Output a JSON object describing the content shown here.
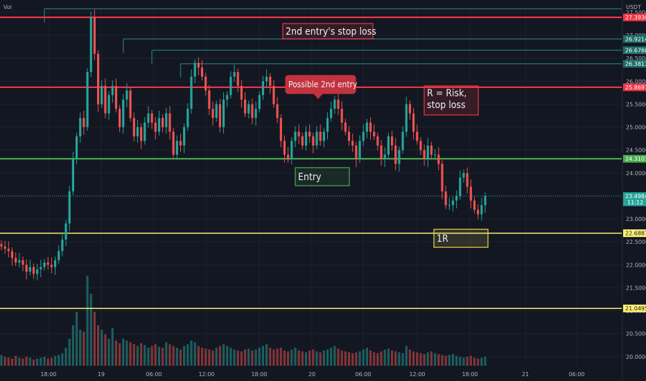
{
  "chart_data": {
    "type": "candlestick",
    "symbol_label": "Vol",
    "currency_label": "USDT",
    "colors": {
      "background": "#131722",
      "up": "#26a69a",
      "down": "#ef5350",
      "red_line": "#f23645",
      "green_line": "#4caf50",
      "yellow_line": "#fff176",
      "teal_line": "#1e6e6a",
      "current_line": "#26a69a",
      "grid": "#1e222d"
    },
    "y_axis": {
      "min": 19.8,
      "max": 27.65,
      "ticks": [
        "27.5000",
        "27.0000",
        "26.5000",
        "26.0000",
        "25.5000",
        "25.0000",
        "24.5000",
        "24.0000",
        "23.5000",
        "23.0000",
        "22.5000",
        "22.0000",
        "21.5000",
        "21.0000",
        "20.5000",
        "20.0000"
      ],
      "tick_values": [
        27.5,
        27.0,
        26.5,
        26.0,
        25.5,
        25.0,
        24.5,
        24.0,
        23.5,
        23.0,
        22.5,
        22.0,
        21.5,
        21.0,
        20.5,
        20.0
      ]
    },
    "x_axis": {
      "labels": [
        "18:00",
        "19",
        "06:00",
        "12:00",
        "18:00",
        "20",
        "06:00",
        "12:00",
        "18:00",
        "21",
        "06:00"
      ]
    },
    "price_labels": [
      {
        "value": "27.3930",
        "price": 27.393,
        "color": "#f23645"
      },
      {
        "value": "26.9214",
        "price": 26.9214,
        "color": "#1e6e6a"
      },
      {
        "value": "26.6760",
        "price": 26.676,
        "color": "#1e6e6a"
      },
      {
        "value": "26.3811",
        "price": 26.3811,
        "color": "#1e6e6a"
      },
      {
        "value": "25.8697",
        "price": 25.8697,
        "color": "#f23645"
      },
      {
        "value": "24.3107",
        "price": 24.3107,
        "color": "#4caf50"
      },
      {
        "value": "23.4984",
        "price": 23.4984,
        "color": "#26a69a",
        "sub": "11:12"
      },
      {
        "value": "22.6887",
        "price": 22.6887,
        "color": "#fff176"
      },
      {
        "value": "21.0495",
        "price": 21.0495,
        "color": "#fff176"
      }
    ],
    "horizontal_levels": [
      {
        "price": 27.393,
        "kind": "red"
      },
      {
        "price": 25.8697,
        "kind": "red"
      },
      {
        "price": 24.3107,
        "kind": "green"
      },
      {
        "price": 22.6887,
        "kind": "yellow"
      },
      {
        "price": 21.0495,
        "kind": "yellow"
      },
      {
        "price": 23.4984,
        "kind": "current"
      }
    ],
    "ray_levels": [
      {
        "price": 27.58,
        "start_price_bar": 12
      },
      {
        "price": 26.9214,
        "start_price_bar": 34
      },
      {
        "price": 26.676,
        "start_price_bar": 42
      },
      {
        "price": 26.3811,
        "start_price_bar": 50
      }
    ],
    "annotations": [
      {
        "text": "2nd entry's stop loss",
        "style": "red-outline"
      },
      {
        "text": "Possible 2nd entry",
        "style": "red-filled"
      },
      {
        "text": "R = Risk,",
        "text2": "stop loss",
        "style": "red-outline"
      },
      {
        "text": "Entry",
        "style": "green-outline"
      },
      {
        "text": "1R",
        "style": "yellow-outline"
      }
    ],
    "candles_closes": [
      22.4,
      22.35,
      22.3,
      22.15,
      22.05,
      22.1,
      22.0,
      21.85,
      21.95,
      21.8,
      21.9,
      21.95,
      22.05,
      22.0,
      21.95,
      22.1,
      22.3,
      22.55,
      22.9,
      23.6,
      24.3,
      24.8,
      25.2,
      25.0,
      26.2,
      27.4,
      26.6,
      25.5,
      25.9,
      25.3,
      25.7,
      25.9,
      25.4,
      25.0,
      25.6,
      25.8,
      25.2,
      24.8,
      25.0,
      24.7,
      25.1,
      25.3,
      25.1,
      24.9,
      25.2,
      25.0,
      25.3,
      24.9,
      24.4,
      24.7,
      24.6,
      25.0,
      25.4,
      26.1,
      26.4,
      26.3,
      26.1,
      25.8,
      25.4,
      25.2,
      25.5,
      25.0,
      25.6,
      25.7,
      26.1,
      26.2,
      25.9,
      25.6,
      25.3,
      25.5,
      25.2,
      25.4,
      25.7,
      26.0,
      26.1,
      25.9,
      25.5,
      25.2,
      24.7,
      24.4,
      24.3,
      24.7,
      24.9,
      24.8,
      24.6,
      24.9,
      24.8,
      24.6,
      24.9,
      24.7,
      24.9,
      25.2,
      25.4,
      25.6,
      25.4,
      25.1,
      24.9,
      24.7,
      24.6,
      24.3,
      24.7,
      24.9,
      25.1,
      24.9,
      24.8,
      24.6,
      24.3,
      24.4,
      24.8,
      24.6,
      24.2,
      24.5,
      24.9,
      25.5,
      25.3,
      24.9,
      24.7,
      24.5,
      24.3,
      24.6,
      24.4,
      24.4,
      24.2,
      23.6,
      23.3,
      23.3,
      23.4,
      23.5,
      23.9,
      24.0,
      23.7,
      23.4,
      23.2,
      23.1,
      23.3,
      23.5
    ],
    "volumes": [
      12,
      10,
      9,
      8,
      11,
      9,
      8,
      10,
      9,
      7,
      8,
      9,
      10,
      8,
      9,
      11,
      12,
      14,
      20,
      30,
      45,
      60,
      40,
      38,
      100,
      80,
      60,
      45,
      40,
      35,
      30,
      42,
      28,
      25,
      30,
      28,
      26,
      24,
      22,
      25,
      23,
      20,
      22,
      24,
      21,
      20,
      26,
      24,
      22,
      20,
      18,
      22,
      24,
      28,
      26,
      22,
      20,
      19,
      18,
      17,
      20,
      22,
      24,
      22,
      20,
      18,
      17,
      16,
      18,
      19,
      17,
      18,
      20,
      22,
      24,
      20,
      18,
      19,
      20,
      17,
      16,
      18,
      20,
      17,
      16,
      15,
      17,
      18,
      16,
      15,
      17,
      18,
      20,
      22,
      19,
      17,
      16,
      15,
      14,
      15,
      16,
      18,
      20,
      17,
      15,
      14,
      16,
      18,
      19,
      17,
      16,
      15,
      14,
      22,
      18,
      16,
      15,
      14,
      13,
      15,
      16,
      14,
      13,
      12,
      11,
      12,
      13,
      11,
      10,
      9,
      10,
      11,
      9,
      8,
      9,
      10
    ]
  }
}
